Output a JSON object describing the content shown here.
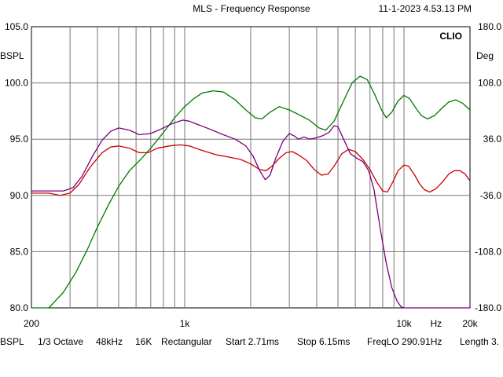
{
  "header": {
    "title": "MLS - Frequency Response",
    "timestamp": "11-1-2023 4.53.13 PM"
  },
  "chart_data": {
    "type": "line",
    "brand_label": "CLIO",
    "y_left_unit": "BSPL",
    "y_right_unit": "Deg",
    "x_scale": "log",
    "xlim": [
      200,
      20000
    ],
    "ylim_left": [
      80,
      105
    ],
    "ylim_right": [
      -180,
      180
    ],
    "x_tick_labels": [
      {
        "value": 200,
        "label": "200"
      },
      {
        "value": 1000,
        "label": "1k"
      },
      {
        "value": 10000,
        "label": "10k"
      },
      {
        "value": 14000,
        "label": "Hz"
      },
      {
        "value": 20000,
        "label": "20k"
      }
    ],
    "y_left_ticks": [
      {
        "value": 105,
        "label": "105.0"
      },
      {
        "value": 100,
        "label": "100.0"
      },
      {
        "value": 95,
        "label": "95.0"
      },
      {
        "value": 90,
        "label": "90.0"
      },
      {
        "value": 85,
        "label": "85.0"
      },
      {
        "value": 80,
        "label": "80.0"
      }
    ],
    "y_right_ticks": [
      {
        "value": 180,
        "label": "180.0"
      },
      {
        "value": 108,
        "label": "108.0"
      },
      {
        "value": 36,
        "label": "36.0"
      },
      {
        "value": -36,
        "label": "-36.0"
      },
      {
        "value": -108,
        "label": "-108.0"
      },
      {
        "value": -180,
        "label": "-180.0"
      }
    ],
    "grid": true,
    "series": [
      {
        "color": "#007a00",
        "axis": "left",
        "points": [
          [
            200,
            80
          ],
          [
            240,
            80
          ],
          [
            280,
            81.4
          ],
          [
            320,
            83.2
          ],
          [
            360,
            85.2
          ],
          [
            400,
            87.2
          ],
          [
            450,
            89.2
          ],
          [
            500,
            90.8
          ],
          [
            560,
            92.2
          ],
          [
            630,
            93.2
          ],
          [
            700,
            94.2
          ],
          [
            800,
            95.6
          ],
          [
            900,
            96.9
          ],
          [
            1000,
            97.9
          ],
          [
            1100,
            98.6
          ],
          [
            1200,
            99.1
          ],
          [
            1350,
            99.3
          ],
          [
            1500,
            99.2
          ],
          [
            1700,
            98.5
          ],
          [
            1900,
            97.6
          ],
          [
            2100,
            96.9
          ],
          [
            2250,
            96.8
          ],
          [
            2450,
            97.4
          ],
          [
            2700,
            97.9
          ],
          [
            3000,
            97.6
          ],
          [
            3300,
            97.2
          ],
          [
            3700,
            96.7
          ],
          [
            4100,
            96.0
          ],
          [
            4400,
            95.8
          ],
          [
            4800,
            96.6
          ],
          [
            5300,
            98.4
          ],
          [
            5800,
            100.0
          ],
          [
            6300,
            100.6
          ],
          [
            6800,
            100.3
          ],
          [
            7300,
            99.1
          ],
          [
            7900,
            97.6
          ],
          [
            8300,
            96.9
          ],
          [
            8800,
            97.4
          ],
          [
            9400,
            98.4
          ],
          [
            10000,
            98.9
          ],
          [
            10600,
            98.6
          ],
          [
            11300,
            97.8
          ],
          [
            12000,
            97.1
          ],
          [
            12800,
            96.8
          ],
          [
            13800,
            97.1
          ],
          [
            14800,
            97.7
          ],
          [
            16000,
            98.3
          ],
          [
            17200,
            98.5
          ],
          [
            18500,
            98.2
          ],
          [
            20000,
            97.6
          ]
        ]
      },
      {
        "color": "#cc0000",
        "axis": "left",
        "points": [
          [
            200,
            90.2
          ],
          [
            240,
            90.2
          ],
          [
            270,
            90.0
          ],
          [
            300,
            90.2
          ],
          [
            330,
            91.0
          ],
          [
            370,
            92.5
          ],
          [
            420,
            93.8
          ],
          [
            460,
            94.3
          ],
          [
            500,
            94.4
          ],
          [
            560,
            94.2
          ],
          [
            620,
            93.8
          ],
          [
            680,
            93.8
          ],
          [
            750,
            94.2
          ],
          [
            850,
            94.4
          ],
          [
            950,
            94.5
          ],
          [
            1050,
            94.4
          ],
          [
            1200,
            94.0
          ],
          [
            1400,
            93.6
          ],
          [
            1600,
            93.4
          ],
          [
            1800,
            93.2
          ],
          [
            2000,
            92.8
          ],
          [
            2200,
            92.3
          ],
          [
            2350,
            92.2
          ],
          [
            2500,
            92.6
          ],
          [
            2700,
            93.3
          ],
          [
            2900,
            93.8
          ],
          [
            3100,
            93.9
          ],
          [
            3300,
            93.6
          ],
          [
            3600,
            93.1
          ],
          [
            3900,
            92.3
          ],
          [
            4200,
            91.8
          ],
          [
            4500,
            91.9
          ],
          [
            4800,
            92.6
          ],
          [
            5200,
            93.7
          ],
          [
            5600,
            94.1
          ],
          [
            6000,
            93.9
          ],
          [
            6500,
            93.2
          ],
          [
            7000,
            92.3
          ],
          [
            7500,
            91.2
          ],
          [
            8000,
            90.4
          ],
          [
            8400,
            90.3
          ],
          [
            8900,
            91.2
          ],
          [
            9400,
            92.2
          ],
          [
            10000,
            92.7
          ],
          [
            10500,
            92.6
          ],
          [
            11200,
            91.8
          ],
          [
            11800,
            91.0
          ],
          [
            12400,
            90.5
          ],
          [
            13100,
            90.3
          ],
          [
            14000,
            90.6
          ],
          [
            15000,
            91.2
          ],
          [
            16000,
            91.9
          ],
          [
            17000,
            92.2
          ],
          [
            18000,
            92.2
          ],
          [
            19000,
            91.9
          ],
          [
            20000,
            91.3
          ]
        ]
      },
      {
        "color": "#7a007a",
        "axis": "left",
        "points": [
          [
            200,
            90.4
          ],
          [
            240,
            90.4
          ],
          [
            280,
            90.4
          ],
          [
            310,
            90.7
          ],
          [
            340,
            91.7
          ],
          [
            380,
            93.5
          ],
          [
            420,
            94.9
          ],
          [
            460,
            95.7
          ],
          [
            500,
            96.0
          ],
          [
            560,
            95.8
          ],
          [
            620,
            95.4
          ],
          [
            700,
            95.5
          ],
          [
            780,
            95.9
          ],
          [
            880,
            96.4
          ],
          [
            980,
            96.7
          ],
          [
            1050,
            96.6
          ],
          [
            1150,
            96.3
          ],
          [
            1300,
            95.9
          ],
          [
            1500,
            95.4
          ],
          [
            1700,
            95.0
          ],
          [
            1900,
            94.4
          ],
          [
            2050,
            93.5
          ],
          [
            2200,
            92.2
          ],
          [
            2330,
            91.4
          ],
          [
            2450,
            91.8
          ],
          [
            2600,
            93.3
          ],
          [
            2800,
            94.8
          ],
          [
            3000,
            95.5
          ],
          [
            3150,
            95.3
          ],
          [
            3300,
            95.0
          ],
          [
            3500,
            95.2
          ],
          [
            3700,
            95.0
          ],
          [
            3950,
            95.1
          ],
          [
            4250,
            95.3
          ],
          [
            4550,
            95.6
          ],
          [
            4800,
            96.2
          ],
          [
            5000,
            96.1
          ],
          [
            5300,
            95.0
          ],
          [
            5700,
            93.7
          ],
          [
            6100,
            93.3
          ],
          [
            6500,
            93.0
          ],
          [
            6900,
            92.2
          ],
          [
            7300,
            90.5
          ],
          [
            7800,
            87.0
          ],
          [
            8300,
            84.0
          ],
          [
            8800,
            81.8
          ],
          [
            9300,
            80.6
          ],
          [
            9700,
            80.1
          ],
          [
            10000,
            80
          ],
          [
            20000,
            80
          ]
        ]
      }
    ]
  },
  "footer": {
    "items": [
      "BSPL",
      "1/3 Octave",
      "48kHz",
      "16K",
      "Rectangular",
      "Start 2.71ms",
      "Stop 6.15ms",
      "FreqLO 290.91Hz",
      "Length 3."
    ]
  }
}
